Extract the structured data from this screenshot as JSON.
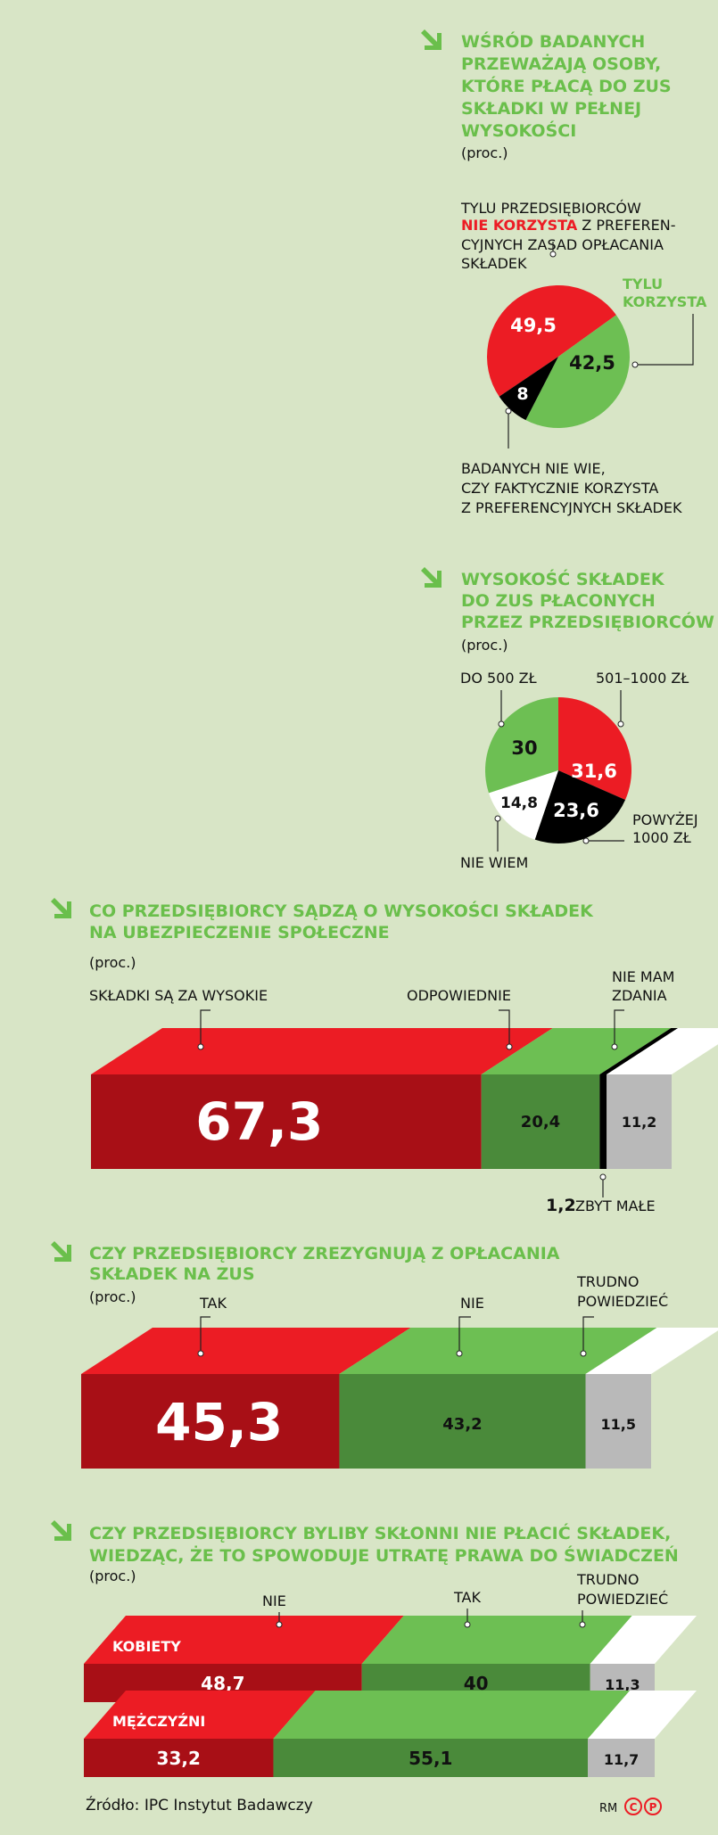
{
  "colors": {
    "background": "#d8e5c6",
    "accent_green": "#6abf4b",
    "red": "#ec1c24",
    "dark_red": "#a80f16",
    "green": "#6dbf53",
    "dark_green": "#4a8a3a",
    "black": "#000000",
    "white": "#ffffff",
    "grey": "#b9b9b9"
  },
  "icons": [
    "arrow-down-right-icon",
    "copyright-icon",
    "copyright-p-icon"
  ],
  "chart_data": [
    {
      "type": "pie",
      "title_lines": [
        "WŚRÓD BADANYCH",
        "PRZEWAŻAJĄ OSOBY,",
        "KTÓRE PŁACĄ DO ZUS",
        "SKŁADKI W PEŁNEJ",
        "WYSOKOŚCI"
      ],
      "unit": "(proc.)",
      "slices": [
        {
          "value": "49,5",
          "number": 49.5,
          "color": "#ec1c24"
        },
        {
          "value": "42,5",
          "number": 42.5,
          "color": "#6dbf53"
        },
        {
          "value": "8",
          "number": 8,
          "color": "#000000"
        }
      ],
      "annotations": {
        "not_using_line1": "TYLU PRZEDSIĘBIORCÓW",
        "not_using_highlight": "NIE KORZYSTA",
        "not_using_line2_rest": " Z PREFEREN-",
        "not_using_line3": "CYJNYCH ZASAD OPŁACANIA",
        "not_using_line4": "SKŁADEK",
        "using_line1": "TYLU",
        "using_line2": "KORZYSTA",
        "dont_know_line1": "BADANYCH NIE WIE,",
        "dont_know_line2": "CZY FAKTYCZNIE KORZYSTA",
        "dont_know_line3": "Z PREFERENCYJNYCH SKŁADEK"
      }
    },
    {
      "type": "pie",
      "title_lines": [
        "WYSOKOŚĆ SKŁADEK",
        "DO ZUS PŁACONYCH",
        "PRZEZ PRZEDSIĘBIORCÓW"
      ],
      "unit": "(proc.)",
      "slices": [
        {
          "label": "501–1000 ZŁ",
          "value": "31,6",
          "number": 31.6,
          "color": "#ec1c24"
        },
        {
          "label_lines": [
            "POWYŻEJ",
            "1000 ZŁ"
          ],
          "value": "23,6",
          "number": 23.6,
          "color": "#000000"
        },
        {
          "label": "NIE WIEM",
          "value": "14,8",
          "number": 14.8,
          "color": "#ffffff"
        },
        {
          "label": "DO 500 ZŁ",
          "value": "30",
          "number": 30,
          "color": "#6dbf53"
        }
      ]
    },
    {
      "type": "bar",
      "stacked": true,
      "title_lines": [
        "CO PRZEDSIĘBIORCY SĄDZĄ O WYSOKOŚCI SKŁADEK",
        "NA UBEZPIECZENIE SPOŁECZNE"
      ],
      "unit": "(proc.)",
      "segments": [
        {
          "label": "SKŁADKI SĄ ZA WYSOKIE",
          "value": "67,3",
          "number": 67.3,
          "color": "#ec1c24"
        },
        {
          "label": "ODPOWIEDNIE",
          "value": "20,4",
          "number": 20.4,
          "color": "#6dbf53"
        },
        {
          "label": "ZBYT MAŁE",
          "value": "1,2",
          "number": 1.2,
          "color": "#000000"
        },
        {
          "label_lines": [
            "NIE MAM",
            "ZDANIA"
          ],
          "value": "11,2",
          "number": 11.2,
          "color": "#ffffff"
        }
      ]
    },
    {
      "type": "bar",
      "stacked": true,
      "title_lines": [
        "CZY PRZEDSIĘBIORCY ZREZYGNUJĄ Z OPŁACANIA",
        "SKŁADEK NA ZUS"
      ],
      "unit": "(proc.)",
      "segments": [
        {
          "label": "TAK",
          "value": "45,3",
          "number": 45.3,
          "color": "#ec1c24"
        },
        {
          "label": "NIE",
          "value": "43,2",
          "number": 43.2,
          "color": "#6dbf53"
        },
        {
          "label_lines": [
            "TRUDNO",
            "POWIEDZIEĆ"
          ],
          "value": "11,5",
          "number": 11.5,
          "color": "#ffffff"
        }
      ]
    },
    {
      "type": "bar",
      "stacked": true,
      "title_lines": [
        "CZY PRZEDSIĘBIORCY BYLIBY SKŁONNI NIE PŁACIĆ SKŁADEK,",
        "WIEDZĄC, ŻE TO SPOWODUJE UTRATĘ PRAWA DO ŚWIADCZEŃ"
      ],
      "unit": "(proc.)",
      "categories": [
        "NIE",
        "TAK",
        "TRUDNO POWIEDZIEĆ"
      ],
      "category_label_lines": [
        [
          "NIE"
        ],
        [
          "TAK"
        ],
        [
          "TRUDNO",
          "POWIEDZIEĆ"
        ]
      ],
      "series": [
        {
          "name": "KOBIETY",
          "values": [
            "48,7",
            "40",
            "11,3"
          ],
          "numbers": [
            48.7,
            40,
            11.3
          ]
        },
        {
          "name": "MĘŻCZYŹNI",
          "values": [
            "33,2",
            "55,1",
            "11,7"
          ],
          "numbers": [
            33.2,
            55.1,
            11.7
          ]
        }
      ]
    }
  ],
  "footer": {
    "source": "Źródło: IPC Instytut Badawczy",
    "credit": "RM",
    "copyright_symbol": "C",
    "phonogram_symbol": "P"
  }
}
